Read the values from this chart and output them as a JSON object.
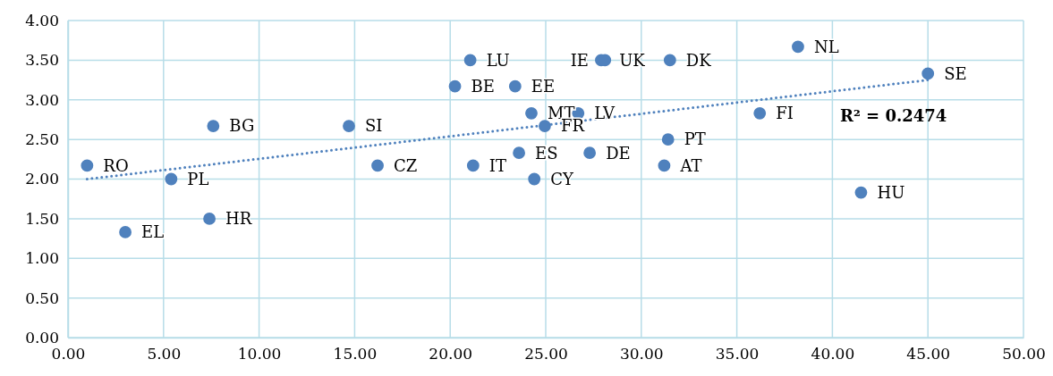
{
  "chart_data": {
    "type": "scatter",
    "grid": true,
    "marker": "circle",
    "xlim": [
      0,
      50
    ],
    "xticks": [
      {
        "value": 0,
        "label": "0.00"
      },
      {
        "value": 5,
        "label": "5.00"
      },
      {
        "value": 10,
        "label": "10.00"
      },
      {
        "value": 15,
        "label": "15.00"
      },
      {
        "value": 20,
        "label": "20.00"
      },
      {
        "value": 25,
        "label": "25.00"
      },
      {
        "value": 30,
        "label": "30.00"
      },
      {
        "value": 35,
        "label": "35.00"
      },
      {
        "value": 40,
        "label": "40.00"
      },
      {
        "value": 45,
        "label": "45.00"
      },
      {
        "value": 50,
        "label": "50.00"
      }
    ],
    "ylim": [
      0,
      4
    ],
    "yticks": [
      {
        "value": 0,
        "label": "0.00"
      },
      {
        "value": 0.5,
        "label": "0.50"
      },
      {
        "value": 1,
        "label": "1.00"
      },
      {
        "value": 1.5,
        "label": "1.50"
      },
      {
        "value": 2,
        "label": "2.00"
      },
      {
        "value": 2.5,
        "label": "2.50"
      },
      {
        "value": 3,
        "label": "3.00"
      },
      {
        "value": 3.5,
        "label": "3.50"
      },
      {
        "value": 4,
        "label": "4.00"
      }
    ],
    "series": [
      {
        "color": "#4f81bd",
        "x": [
          1.0,
          5.4,
          3.0,
          7.4,
          7.6,
          14.7,
          16.2,
          21.05,
          20.25,
          23.4,
          24.25,
          26.7,
          24.95,
          23.6,
          27.3,
          21.2,
          24.4,
          27.9,
          28.1,
          31.5,
          31.4,
          31.2,
          36.2,
          38.2,
          45.0,
          41.5
        ],
        "values": [
          2.17,
          2.0,
          1.33,
          1.5,
          2.67,
          2.67,
          2.17,
          3.5,
          3.17,
          3.17,
          2.83,
          2.83,
          2.67,
          2.33,
          2.33,
          2.17,
          2.0,
          3.5,
          3.5,
          3.5,
          2.5,
          2.17,
          2.83,
          3.67,
          3.33,
          1.83
        ]
      },
      {
        "type": "line",
        "color": "#4f81bd",
        "line_style": "dotted",
        "marker": "none",
        "x": [
          1.0,
          45.0
        ],
        "values": [
          2.0,
          3.25
        ]
      }
    ],
    "annotations": [
      {
        "text": "RO",
        "x": 1.0,
        "y": 2.17
      },
      {
        "text": "PL",
        "x": 5.4,
        "y": 2.0
      },
      {
        "text": "EL",
        "x": 3.0,
        "y": 1.33
      },
      {
        "text": "HR",
        "x": 7.4,
        "y": 1.5
      },
      {
        "text": "BG",
        "x": 7.6,
        "y": 2.67
      },
      {
        "text": "SI",
        "x": 14.7,
        "y": 2.67
      },
      {
        "text": "CZ",
        "x": 16.2,
        "y": 2.17
      },
      {
        "text": "LU",
        "x": 21.05,
        "y": 3.5
      },
      {
        "text": "BE",
        "x": 20.25,
        "y": 3.17
      },
      {
        "text": "EE",
        "x": 23.4,
        "y": 3.17
      },
      {
        "text": "MT",
        "x": 24.25,
        "y": 2.83
      },
      {
        "text": "LV",
        "x": 26.7,
        "y": 2.83
      },
      {
        "text": "FR",
        "x": 24.95,
        "y": 2.67
      },
      {
        "text": "ES",
        "x": 23.6,
        "y": 2.33
      },
      {
        "text": "DE",
        "x": 27.3,
        "y": 2.33
      },
      {
        "text": "IT",
        "x": 21.2,
        "y": 2.17
      },
      {
        "text": "CY",
        "x": 24.4,
        "y": 2.0
      },
      {
        "text": "IE",
        "x": 27.9,
        "y": 3.5
      },
      {
        "text": "UK",
        "x": 28.1,
        "y": 3.5
      },
      {
        "text": "DK",
        "x": 31.5,
        "y": 3.5
      },
      {
        "text": "PT",
        "x": 31.4,
        "y": 2.5
      },
      {
        "text": "AT",
        "x": 31.2,
        "y": 2.17
      },
      {
        "text": "FI",
        "x": 36.2,
        "y": 2.83
      },
      {
        "text": "NL",
        "x": 38.2,
        "y": 3.67
      },
      {
        "text": "SE",
        "x": 45.0,
        "y": 3.33
      },
      {
        "text": "HU",
        "x": 41.5,
        "y": 1.83
      },
      "R² = 0.2474"
    ]
  }
}
